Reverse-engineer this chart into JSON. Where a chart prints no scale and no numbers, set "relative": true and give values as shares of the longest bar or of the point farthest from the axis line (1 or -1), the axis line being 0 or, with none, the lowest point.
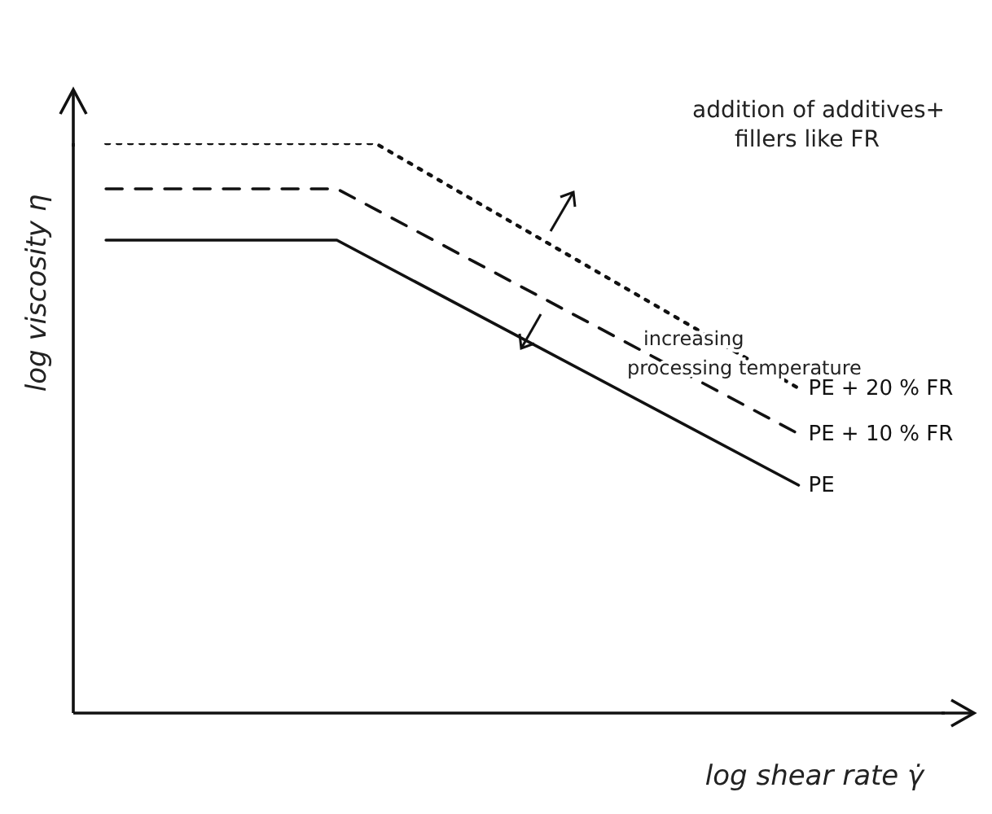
{
  "chart_data": {
    "type": "line",
    "relative": true,
    "xlabel": "log shear rate γ̇",
    "ylabel": "log viscosity η",
    "categories": [
      null,
      null,
      null,
      null,
      null,
      null,
      null,
      null,
      null,
      null,
      null,
      null,
      null,
      null,
      null,
      null,
      null,
      null,
      null
    ],
    "series": [
      {
        "name": "PE + 20 % FR",
        "color": "#111111",
        "line_style": "dotted",
        "values": [
          1.0,
          null,
          null,
          null,
          null,
          null,
          null,
          1.0,
          null,
          null,
          null,
          null,
          null,
          null,
          null,
          null,
          null,
          null,
          0.57
        ]
      },
      {
        "name": "PE + 10 % FR",
        "color": "#111111",
        "line_style": "dashed",
        "values": [
          0.92,
          null,
          null,
          null,
          null,
          null,
          0.92,
          null,
          null,
          null,
          null,
          null,
          null,
          null,
          null,
          null,
          null,
          null,
          0.49
        ]
      },
      {
        "name": "PE",
        "color": "#111111",
        "line_style": "solid",
        "values": [
          0.83,
          null,
          null,
          null,
          null,
          null,
          0.83,
          null,
          null,
          null,
          null,
          null,
          null,
          null,
          null,
          null,
          null,
          null,
          0.4
        ]
      }
    ],
    "annotations": [
      "addition of additives+\nfillers like FR",
      "increasing\nprocessing temperature"
    ],
    "grid": false,
    "legend": false,
    "marker": "none"
  }
}
